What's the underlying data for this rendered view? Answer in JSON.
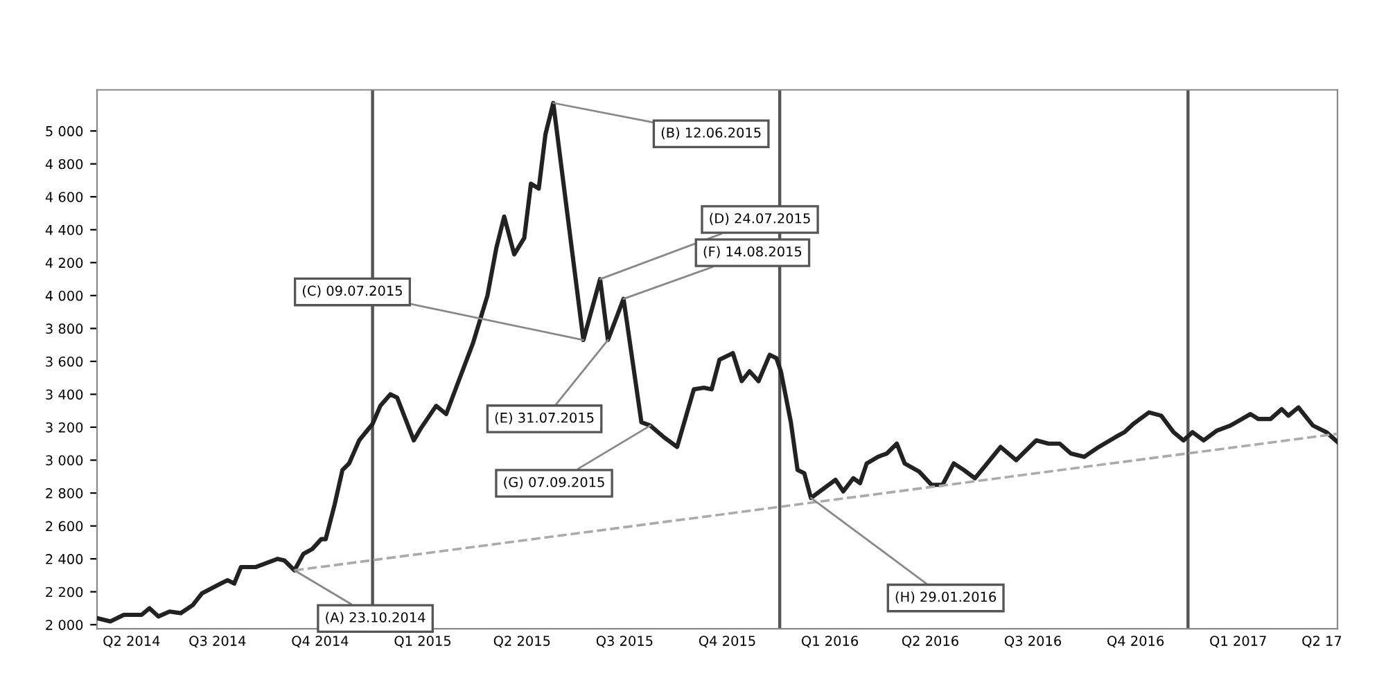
{
  "chart_data": {
    "type": "line",
    "x": [
      "2014-04-29",
      "2014-05-11",
      "2014-05-23",
      "2014-06-08",
      "2014-06-15",
      "2014-06-23",
      "2014-07-03",
      "2014-07-13",
      "2014-07-24",
      "2014-08-01",
      "2014-08-18",
      "2014-08-24",
      "2014-08-30",
      "2014-09-05",
      "2014-09-18",
      "2014-10-08",
      "2014-10-14",
      "2014-10-23",
      "2014-10-31",
      "2014-11-08",
      "2014-11-16",
      "2014-11-20",
      "2014-11-28",
      "2014-12-05",
      "2014-12-11",
      "2014-12-20",
      "2015-01-01",
      "2015-01-08",
      "2015-01-17",
      "2015-01-23",
      "2015-02-07",
      "2015-02-13",
      "2015-02-27",
      "2015-03-08",
      "2015-03-18",
      "2015-04-01",
      "2015-04-14",
      "2015-04-22",
      "2015-04-29",
      "2015-05-08",
      "2015-05-17",
      "2015-05-23",
      "2015-05-30",
      "2015-06-05",
      "2015-06-12",
      "2015-07-09",
      "2015-07-24",
      "2015-07-31",
      "2015-08-14",
      "2015-08-30",
      "2015-09-07",
      "2015-09-19",
      "2015-10-01",
      "2015-10-16",
      "2015-10-25",
      "2015-11-01",
      "2015-11-08",
      "2015-11-20",
      "2015-11-28",
      "2015-12-05",
      "2015-12-13",
      "2015-12-23",
      "2015-12-29",
      "2016-01-02",
      "2016-01-11",
      "2016-01-17",
      "2016-01-23",
      "2016-01-29",
      "2016-02-08",
      "2016-02-20",
      "2016-02-27",
      "2016-03-07",
      "2016-03-13",
      "2016-03-19",
      "2016-03-29",
      "2016-04-06",
      "2016-04-15",
      "2016-04-22",
      "2016-05-05",
      "2016-05-16",
      "2016-05-26",
      "2016-06-05",
      "2016-06-14",
      "2016-06-24",
      "2016-07-05",
      "2016-07-17",
      "2016-07-31",
      "2016-08-18",
      "2016-08-29",
      "2016-09-08",
      "2016-09-18",
      "2016-09-30",
      "2016-10-13",
      "2016-10-28",
      "2016-11-05",
      "2016-11-13",
      "2016-11-27",
      "2016-12-08",
      "2016-12-19",
      "2016-12-28",
      "2017-01-05",
      "2017-01-15",
      "2017-01-27",
      "2017-02-08",
      "2017-02-26",
      "2017-03-05",
      "2017-03-16",
      "2017-03-26",
      "2017-04-01",
      "2017-04-10",
      "2017-04-23",
      "2017-05-05",
      "2017-05-15"
    ],
    "series": [
      {
        "color": "#222222",
        "values": [
          2040,
          2020,
          2060,
          2060,
          2100,
          2050,
          2080,
          2070,
          2120,
          2190,
          2250,
          2270,
          2250,
          2350,
          2350,
          2400,
          2390,
          2330,
          2430,
          2460,
          2520,
          2520,
          2730,
          2940,
          2980,
          3120,
          3220,
          3330,
          3400,
          3380,
          3120,
          3190,
          3330,
          3280,
          3460,
          3710,
          4000,
          4290,
          4480,
          4250,
          4350,
          4680,
          4650,
          4980,
          5170,
          3730,
          4100,
          3730,
          3980,
          3230,
          3210,
          3140,
          3080,
          3430,
          3440,
          3430,
          3610,
          3650,
          3480,
          3540,
          3480,
          3640,
          3620,
          3540,
          3230,
          2940,
          2920,
          2770,
          2820,
          2880,
          2810,
          2890,
          2860,
          2980,
          3020,
          3040,
          3100,
          2980,
          2930,
          2850,
          2850,
          2980,
          2940,
          2890,
          2980,
          3080,
          3000,
          3120,
          3100,
          3100,
          3040,
          3020,
          3080,
          3140,
          3170,
          3220,
          3290,
          3270,
          3170,
          3120,
          3170,
          3120,
          3180,
          3210,
          3280,
          3250,
          3250,
          3310,
          3270,
          3320,
          3210,
          3170,
          3110
        ]
      },
      {
        "type": "line",
        "color": "#aaaaaa",
        "line_style": "dashed",
        "x": [
          "2014-10-23",
          "2017-05-15"
        ],
        "values": [
          2330,
          3160
        ]
      }
    ],
    "xlim": [
      "2014-04-29",
      "2017-05-15"
    ],
    "xticks": [
      {
        "value": "2014-05-30",
        "label": "Q2 2014"
      },
      {
        "value": "2014-08-15",
        "label": "Q3 2014"
      },
      {
        "value": "2014-11-15",
        "label": "Q4 2014"
      },
      {
        "value": "2015-02-15",
        "label": "Q1 2015"
      },
      {
        "value": "2015-05-15",
        "label": "Q2 2015"
      },
      {
        "value": "2015-08-15",
        "label": "Q3 2015"
      },
      {
        "value": "2015-11-15",
        "label": "Q4 2015"
      },
      {
        "value": "2016-02-15",
        "label": "Q1 2016"
      },
      {
        "value": "2016-05-15",
        "label": "Q2 2016"
      },
      {
        "value": "2016-08-15",
        "label": "Q3 2016"
      },
      {
        "value": "2016-11-15",
        "label": "Q4 2016"
      },
      {
        "value": "2017-02-15",
        "label": "Q1 2017"
      },
      {
        "value": "2017-05-01",
        "label": "Q2 17"
      }
    ],
    "ylim": [
      1975,
      5250
    ],
    "yticks": [
      {
        "value": 2000,
        "label": "2 000"
      },
      {
        "value": 2200,
        "label": "2 200"
      },
      {
        "value": 2400,
        "label": "2 400"
      },
      {
        "value": 2600,
        "label": "2 600"
      },
      {
        "value": 2800,
        "label": "2 800"
      },
      {
        "value": 3000,
        "label": "3 000"
      },
      {
        "value": 3200,
        "label": "3 200"
      },
      {
        "value": 3400,
        "label": "3 400"
      },
      {
        "value": 3600,
        "label": "3 600"
      },
      {
        "value": 3800,
        "label": "3 800"
      },
      {
        "value": 4000,
        "label": "4 000"
      },
      {
        "value": 4200,
        "label": "4 200"
      },
      {
        "value": 4400,
        "label": "4 400"
      },
      {
        "value": 4600,
        "label": "4 600"
      },
      {
        "value": 4800,
        "label": "4 800"
      },
      {
        "value": 5000,
        "label": "5 000"
      }
    ],
    "ref_lines": [
      {
        "axis": "x",
        "value": "2015-01-01",
        "color": "#555555"
      },
      {
        "axis": "x",
        "value": "2016-01-01",
        "color": "#555555"
      },
      {
        "axis": "x",
        "value": "2017-01-01",
        "color": "#555555"
      }
    ],
    "annotations": [
      {
        "text": "(A) 23.10.2014",
        "x": "2014-10-23",
        "y": 2330
      },
      {
        "text": "(B) 12.06.2015",
        "x": "2015-06-12",
        "y": 5170
      },
      {
        "text": "(C) 09.07.2015",
        "x": "2015-07-09",
        "y": 3730
      },
      {
        "text": "(D) 24.07.2015",
        "x": "2015-07-24",
        "y": 4100
      },
      {
        "text": "(E) 31.07.2015",
        "x": "2015-07-31",
        "y": 3730
      },
      {
        "text": "(F) 14.08.2015",
        "x": "2015-08-14",
        "y": 3980
      },
      {
        "text": "(G) 07.09.2015",
        "x": "2015-09-07",
        "y": 3210
      },
      {
        "text": "(H) 29.01.2016",
        "x": "2016-01-29",
        "y": 2770
      }
    ],
    "grid": false
  }
}
